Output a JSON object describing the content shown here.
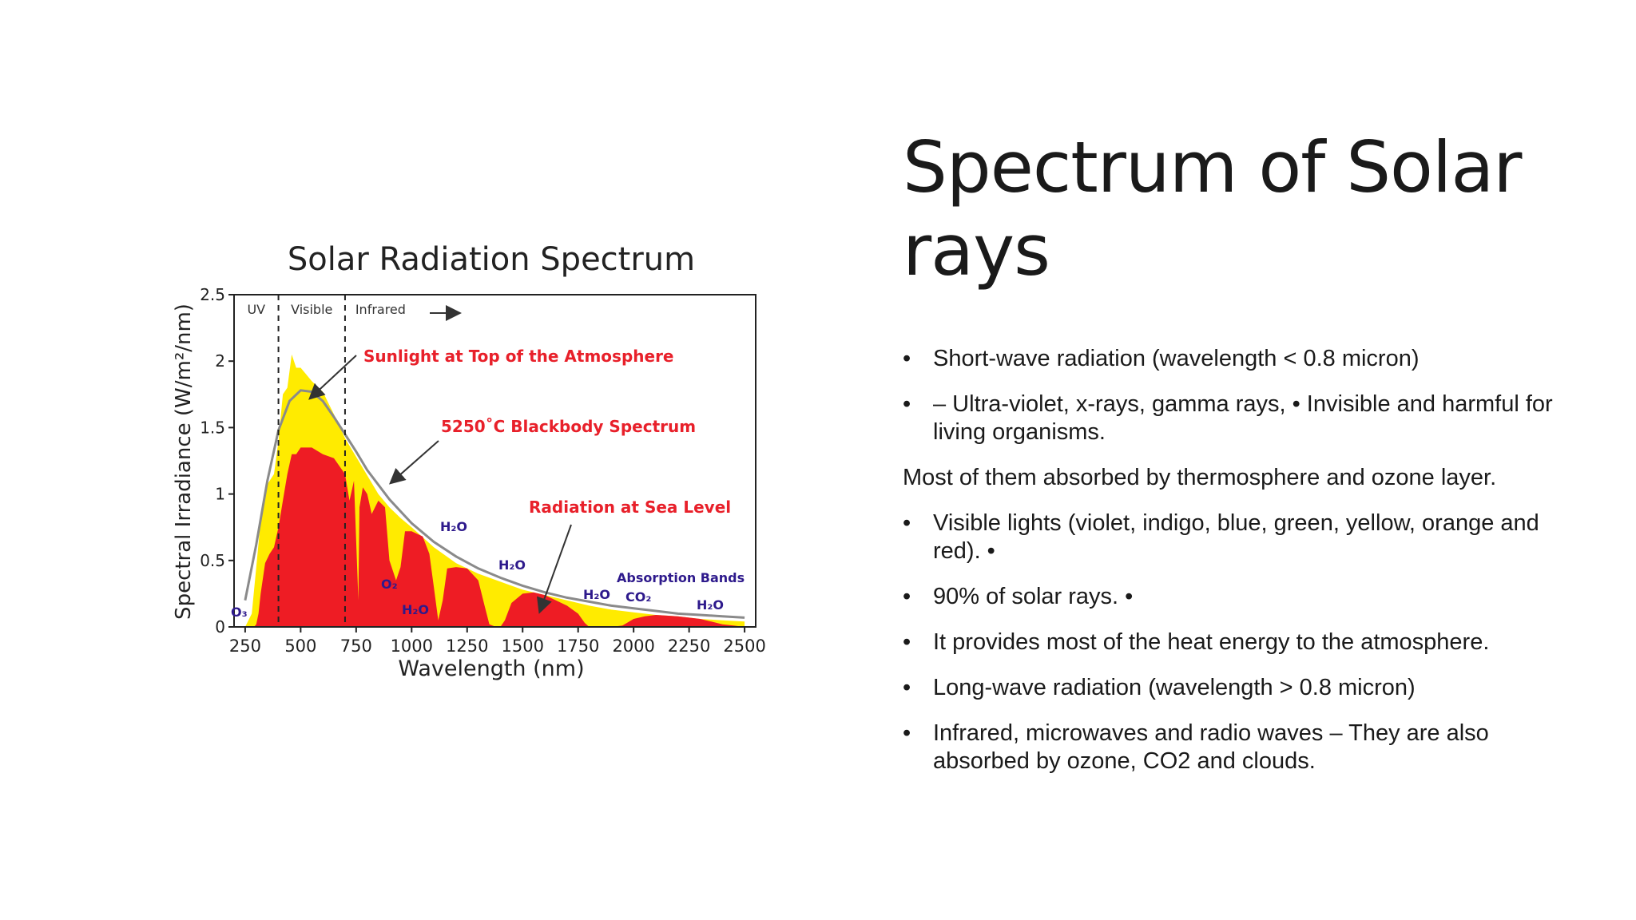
{
  "slide": {
    "title": "Spectrum of Solar rays",
    "body": [
      {
        "type": "bullet",
        "marker": "•",
        "text": "Short-wave radiation (wavelength < 0.8 micron)"
      },
      {
        "type": "bullet",
        "marker": "•",
        "text": " – Ultra-violet, x-rays, gamma rays, • Invisible and harmful for living organisms."
      },
      {
        "type": "plain",
        "text": "Most of them absorbed by thermosphere and ozone layer."
      },
      {
        "type": "bullet",
        "marker": "•",
        "text": " Visible lights (violet, indigo, blue, green, yellow, orange and red). •"
      },
      {
        "type": "bullet",
        "marker": "•",
        "text": " 90% of solar rays. •"
      },
      {
        "type": "bullet",
        "marker": "•",
        "text": "It provides most of the heat energy to the atmosphere."
      },
      {
        "type": "bullet",
        "marker": "•",
        "text": "Long-wave radiation (wavelength > 0.8 micron)"
      },
      {
        "type": "bullet",
        "marker": "•",
        "text": "Infrared, microwaves and radio waves – They are also absorbed by ozone, CO2 and clouds."
      }
    ]
  },
  "colors": {
    "top_of_atmosphere": "#ffeb00",
    "sea_level": "#ee1c24",
    "blackbody": "#8a8a8a",
    "label_red": "#e8202a",
    "label_blue": "#2e1a8c"
  },
  "chart_data": {
    "type": "area",
    "title": "Solar Radiation Spectrum",
    "xlabel": "Wavelength (nm)",
    "ylabel": "Spectral Irradiance (W/m²/nm)",
    "xlim": [
      200,
      2550
    ],
    "ylim": [
      0,
      2.5
    ],
    "xticks": [
      250,
      500,
      750,
      1000,
      1250,
      1500,
      1750,
      2000,
      2250,
      2500
    ],
    "yticks": [
      0,
      0.5,
      1,
      1.5,
      2,
      2.5
    ],
    "ytick_labels": [
      "0",
      "0.5",
      "1",
      "1.5",
      "2",
      "2.5"
    ],
    "region_dividers": [
      400,
      700
    ],
    "regions": [
      {
        "label": "UV",
        "x": 300
      },
      {
        "label": "Visible",
        "x": 550
      },
      {
        "label": "Infrared",
        "x": 860
      }
    ],
    "series": [
      {
        "name": "Sunlight at Top of the Atmosphere",
        "x": [
          250,
          280,
          300,
          320,
          340,
          360,
          380,
          400,
          420,
          440,
          460,
          480,
          500,
          550,
          600,
          650,
          700,
          750,
          800,
          850,
          900,
          950,
          1000,
          1100,
          1200,
          1300,
          1400,
          1500,
          1600,
          1700,
          1800,
          1900,
          2000,
          2100,
          2200,
          2300,
          2400,
          2500
        ],
        "y": [
          0.0,
          0.1,
          0.45,
          0.8,
          1.05,
          1.1,
          1.15,
          1.4,
          1.75,
          1.8,
          2.05,
          1.95,
          1.95,
          1.85,
          1.77,
          1.6,
          1.42,
          1.28,
          1.14,
          1.0,
          0.9,
          0.82,
          0.75,
          0.6,
          0.48,
          0.4,
          0.34,
          0.28,
          0.24,
          0.2,
          0.16,
          0.13,
          0.11,
          0.09,
          0.08,
          0.06,
          0.05,
          0.04
        ]
      },
      {
        "name": "5250°C Blackbody Spectrum",
        "x": [
          250,
          300,
          350,
          400,
          450,
          500,
          550,
          600,
          650,
          700,
          750,
          800,
          900,
          1000,
          1100,
          1200,
          1300,
          1400,
          1500,
          1600,
          1700,
          1800,
          1900,
          2000,
          2100,
          2200,
          2300,
          2400,
          2500
        ],
        "y": [
          0.2,
          0.62,
          1.1,
          1.48,
          1.7,
          1.78,
          1.77,
          1.7,
          1.58,
          1.45,
          1.32,
          1.18,
          0.96,
          0.78,
          0.64,
          0.53,
          0.44,
          0.37,
          0.31,
          0.26,
          0.22,
          0.19,
          0.16,
          0.14,
          0.12,
          0.1,
          0.09,
          0.08,
          0.07
        ]
      },
      {
        "name": "Radiation at Sea Level",
        "x": [
          280,
          290,
          300,
          310,
          320,
          340,
          360,
          380,
          400,
          420,
          440,
          460,
          480,
          500,
          550,
          600,
          650,
          700,
          720,
          740,
          760,
          765,
          780,
          800,
          820,
          850,
          880,
          900,
          930,
          950,
          970,
          1000,
          1050,
          1080,
          1100,
          1120,
          1140,
          1160,
          1200,
          1250,
          1300,
          1330,
          1350,
          1380,
          1400,
          1420,
          1450,
          1500,
          1550,
          1600,
          1650,
          1700,
          1750,
          1780,
          1800,
          1850,
          1900,
          1950,
          2000,
          2050,
          2100,
          2200,
          2300,
          2350,
          2400,
          2450,
          2500
        ],
        "y": [
          0.0,
          0.0,
          0.02,
          0.1,
          0.25,
          0.48,
          0.55,
          0.6,
          0.75,
          0.95,
          1.15,
          1.3,
          1.3,
          1.35,
          1.35,
          1.3,
          1.27,
          1.15,
          0.95,
          1.1,
          0.2,
          0.9,
          1.05,
          1.0,
          0.85,
          0.95,
          0.9,
          0.5,
          0.35,
          0.45,
          0.72,
          0.72,
          0.68,
          0.55,
          0.3,
          0.05,
          0.2,
          0.44,
          0.45,
          0.44,
          0.35,
          0.15,
          0.02,
          0.0,
          0.0,
          0.05,
          0.18,
          0.25,
          0.26,
          0.24,
          0.2,
          0.16,
          0.1,
          0.03,
          0.0,
          0.0,
          0.0,
          0.01,
          0.06,
          0.08,
          0.09,
          0.08,
          0.06,
          0.04,
          0.02,
          0.01,
          0.0
        ]
      }
    ],
    "annotations": [
      {
        "text": "Sunlight at Top of the Atmosphere",
        "color": "red"
      },
      {
        "text": "5250˚C Blackbody Spectrum",
        "color": "red"
      },
      {
        "text": "Radiation at Sea Level",
        "color": "red"
      },
      {
        "text": "Absorption Bands",
        "color": "blue"
      }
    ],
    "absorption_labels": [
      "O₃",
      "O₂",
      "H₂O",
      "H₂O",
      "H₂O",
      "H₂O",
      "CO₂",
      "H₂O"
    ]
  }
}
